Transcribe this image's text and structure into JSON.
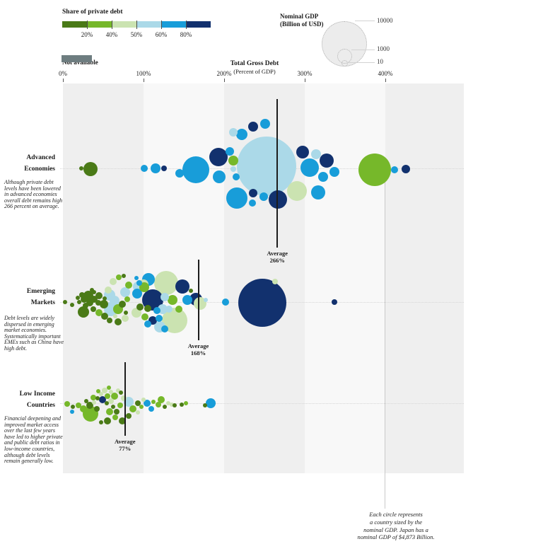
{
  "legend": {
    "title": "Share of private debt",
    "tick_labels": [
      "20%",
      "40%",
      "50%",
      "60%",
      "80%"
    ],
    "not_available_label": "Not available",
    "not_available_color": "#6e7d80"
  },
  "size_legend": {
    "title_line1": "Nominal GDP",
    "title_line2": "(Billion of USD)",
    "labels": [
      "10000",
      "1000",
      "10"
    ]
  },
  "axis": {
    "title_line1": "Total Gross Debt",
    "title_line2": "(Percent of GDP)",
    "tick_labels": [
      "0%",
      "100%",
      "200%",
      "300%",
      "400%"
    ]
  },
  "annotation": {
    "line1": "Each circle represents",
    "line2": "a country sized by the",
    "line3": "nominal GDP. Japan has a",
    "line4": "nominal GDP of $4,873 Billion."
  },
  "chart_data": {
    "type": "scatter",
    "subtype": "bubble-strip-plot",
    "encoding": {
      "x": "Total Gross Debt (Percent of GDP)",
      "size": "Nominal GDP (Billion of USD)",
      "color": "Share of private debt"
    },
    "x_ticks_pct": [
      0,
      100,
      200,
      300,
      400
    ],
    "x_max_pct": 497,
    "size_legend_values": [
      10000,
      1000,
      10
    ],
    "colors": {
      "dg": "#4a7a17",
      "g": "#76b82a",
      "pg": "#cbe3b1",
      "pb": "#abd9e8",
      "b": "#189dd9",
      "n": "#12316e",
      "na": "#6e7d80"
    },
    "color_scale_labels": [
      "20%",
      "40%",
      "50%",
      "60%",
      "80%"
    ],
    "groups": [
      {
        "id": "ae",
        "label_line1": "Advanced",
        "label_line2": "Economies",
        "caption": "Although private debt levels have been lowered in advanced economies overall debt remains high 266 percent on average.",
        "average_label": "Average",
        "average_value": "266%",
        "average_pct": 266,
        "bubbles": [
          [
            23,
            0,
            3,
            "dg"
          ],
          [
            34,
            1,
            10,
            "dg"
          ],
          [
            101,
            0,
            5,
            "b"
          ],
          [
            115,
            0,
            7,
            "b"
          ],
          [
            125,
            0,
            4,
            "n"
          ],
          [
            145,
            7,
            6,
            "b"
          ],
          [
            165,
            2,
            19,
            "b"
          ],
          [
            193,
            -16,
            13,
            "n"
          ],
          [
            194,
            12,
            9,
            "b"
          ],
          [
            207,
            -24,
            6,
            "b"
          ],
          [
            211,
            -11,
            7,
            "g"
          ],
          [
            211,
            1,
            4,
            "pb"
          ],
          [
            215,
            12,
            5,
            "b"
          ],
          [
            222,
            -48,
            8,
            "b"
          ],
          [
            211,
            -51,
            6,
            "pb"
          ],
          [
            236,
            -59,
            7,
            "n"
          ],
          [
            251,
            -63,
            7,
            "b"
          ],
          [
            253,
            -3,
            42,
            "pb"
          ],
          [
            267,
            44,
            13,
            "n"
          ],
          [
            236,
            35,
            6,
            "n"
          ],
          [
            249,
            40,
            6,
            "b"
          ],
          [
            235,
            49,
            5,
            "b"
          ],
          [
            216,
            42,
            15,
            "b"
          ],
          [
            297,
            -23,
            9,
            "n"
          ],
          [
            314,
            -20,
            7,
            "pb"
          ],
          [
            327,
            -11,
            10,
            "n"
          ],
          [
            306,
            -1,
            13,
            "b"
          ],
          [
            337,
            5,
            7,
            "b"
          ],
          [
            323,
            12,
            7,
            "b"
          ],
          [
            290,
            32,
            14,
            "pg"
          ],
          [
            317,
            34,
            10,
            "b"
          ],
          [
            387,
            2,
            23,
            "g"
          ],
          [
            411,
            2,
            5,
            "b"
          ],
          [
            425,
            1,
            6,
            "n"
          ]
        ]
      },
      {
        "id": "em",
        "label_line1": "Emerging",
        "label_line2": "Markets",
        "caption": "Debt levels are widely dispersed in emerging market economies. Systematically important EMEs such as China have high debt.",
        "average_label": "Average",
        "average_value": "168%",
        "average_pct": 168,
        "bubbles": [
          [
            3,
            0,
            3,
            "dg"
          ],
          [
            11,
            4,
            3,
            "dg"
          ],
          [
            18,
            -6,
            3,
            "dg"
          ],
          [
            20,
            0,
            3,
            "dg"
          ],
          [
            24,
            -10,
            4,
            "dg"
          ],
          [
            26,
            -4,
            5,
            "dg"
          ],
          [
            32,
            -9,
            7,
            "dg"
          ],
          [
            28,
            5,
            4,
            "dg"
          ],
          [
            33,
            1,
            5,
            "dg"
          ],
          [
            25,
            14,
            8,
            "dg"
          ],
          [
            39,
            -4,
            5,
            "dg"
          ],
          [
            39,
            -14,
            3,
            "dg"
          ],
          [
            36,
            -17,
            3,
            "dg"
          ],
          [
            45,
            -9,
            5,
            "dg"
          ],
          [
            44,
            1,
            4,
            "dg"
          ],
          [
            38,
            10,
            4,
            "dg"
          ],
          [
            45,
            15,
            5,
            "g"
          ],
          [
            51,
            3,
            6,
            "dg"
          ],
          [
            52,
            -5,
            3,
            "dg"
          ],
          [
            56,
            -17,
            5,
            "pg"
          ],
          [
            62,
            -29,
            5,
            "pg"
          ],
          [
            69,
            -35,
            4,
            "g"
          ],
          [
            75,
            -37,
            3,
            "dg"
          ],
          [
            58,
            -10,
            8,
            "pb"
          ],
          [
            64,
            -2,
            7,
            "pb"
          ],
          [
            60,
            10,
            10,
            "pb"
          ],
          [
            68,
            10,
            7,
            "g"
          ],
          [
            52,
            20,
            5,
            "dg"
          ],
          [
            58,
            26,
            4,
            "dg"
          ],
          [
            65,
            20,
            3,
            "pg"
          ],
          [
            68,
            28,
            5,
            "dg"
          ],
          [
            77,
            23,
            5,
            "pg"
          ],
          [
            78,
            15,
            3,
            "dg"
          ],
          [
            74,
            3,
            5,
            "dg"
          ],
          [
            80,
            -4,
            4,
            "g"
          ],
          [
            77,
            -14,
            7,
            "pb"
          ],
          [
            82,
            -24,
            5,
            "g"
          ],
          [
            93,
            -22,
            7,
            "pb"
          ],
          [
            100,
            -25,
            7,
            "pg"
          ],
          [
            106,
            -32,
            9,
            "b"
          ],
          [
            92,
            -12,
            7,
            "b"
          ],
          [
            95,
            -27,
            4,
            "b"
          ],
          [
            91,
            -34,
            3,
            "b"
          ],
          [
            101,
            -21,
            7,
            "g"
          ],
          [
            128,
            -27,
            17,
            "pg"
          ],
          [
            111,
            -3,
            15,
            "n"
          ],
          [
            126,
            -7,
            6,
            "pb"
          ],
          [
            136,
            -3,
            7,
            "g"
          ],
          [
            148,
            -22,
            10,
            "n"
          ],
          [
            159,
            -16,
            3,
            "dg"
          ],
          [
            154,
            -3,
            7,
            "b"
          ],
          [
            165,
            -4,
            9,
            "n"
          ],
          [
            132,
            10,
            5,
            "pb"
          ],
          [
            144,
            10,
            5,
            "g"
          ],
          [
            124,
            10,
            7,
            "pb"
          ],
          [
            117,
            12,
            5,
            "b"
          ],
          [
            105,
            9,
            5,
            "dg"
          ],
          [
            96,
            7,
            5,
            "dg"
          ],
          [
            91,
            15,
            7,
            "pg"
          ],
          [
            102,
            21,
            5,
            "g"
          ],
          [
            111,
            26,
            6,
            "n"
          ],
          [
            119,
            23,
            5,
            "b"
          ],
          [
            139,
            26,
            18,
            "pg"
          ],
          [
            120,
            35,
            8,
            "pb"
          ],
          [
            105,
            31,
            5,
            "b"
          ],
          [
            126,
            38,
            5,
            "b"
          ],
          [
            170,
            2,
            9,
            "pg"
          ],
          [
            177,
            -3,
            3,
            "pb"
          ],
          [
            202,
            0,
            5,
            "b"
          ],
          [
            247,
            1,
            34,
            "n"
          ],
          [
            263,
            -29,
            4,
            "pg"
          ],
          [
            337,
            0,
            4,
            "n"
          ]
        ]
      },
      {
        "id": "lic",
        "label_line1": "Low Income",
        "label_line2": "Countries",
        "caption": "Financial deepening and improved market access over the last few years have led to higher private and public debt ratios in low-income countries, although debt levels remain generally low.",
        "average_label": "Average",
        "average_value": "77%",
        "average_pct": 77,
        "bubbles": [
          [
            5,
            1,
            4,
            "g"
          ],
          [
            12,
            5,
            3,
            "dg"
          ],
          [
            19,
            3,
            4,
            "g"
          ],
          [
            11,
            12,
            3,
            "b"
          ],
          [
            25,
            8,
            5,
            "g"
          ],
          [
            29,
            -3,
            3,
            "dg"
          ],
          [
            33,
            3,
            5,
            "dg"
          ],
          [
            32,
            12,
            4,
            "g"
          ],
          [
            38,
            -8,
            4,
            "g"
          ],
          [
            39,
            -1,
            3,
            "pg"
          ],
          [
            42,
            8,
            4,
            "dg"
          ],
          [
            34,
            15,
            11,
            "g"
          ],
          [
            43,
            -7,
            3,
            "dg"
          ],
          [
            47,
            -13,
            3,
            "pg"
          ],
          [
            49,
            -5,
            5,
            "n"
          ],
          [
            55,
            -10,
            4,
            "g"
          ],
          [
            54,
            0,
            3,
            "dg"
          ],
          [
            60,
            -3,
            4,
            "pg"
          ],
          [
            64,
            -10,
            5,
            "g"
          ],
          [
            62,
            5,
            3,
            "dg"
          ],
          [
            58,
            12,
            5,
            "g"
          ],
          [
            67,
            12,
            4,
            "dg"
          ],
          [
            65,
            20,
            4,
            "g"
          ],
          [
            71,
            3,
            4,
            "g"
          ],
          [
            75,
            -7,
            4,
            "pg"
          ],
          [
            47,
            27,
            3,
            "dg"
          ],
          [
            55,
            25,
            5,
            "dg"
          ],
          [
            74,
            25,
            5,
            "dg"
          ],
          [
            82,
            18,
            4,
            "dg"
          ],
          [
            82,
            -2,
            7,
            "pb"
          ],
          [
            87,
            8,
            5,
            "g"
          ],
          [
            93,
            0,
            4,
            "dg"
          ],
          [
            97,
            5,
            3,
            "g"
          ],
          [
            93,
            13,
            3,
            "pg"
          ],
          [
            100,
            -5,
            3,
            "pg"
          ],
          [
            104,
            0,
            5,
            "b"
          ],
          [
            110,
            8,
            4,
            "b"
          ],
          [
            112,
            -2,
            3,
            "g"
          ],
          [
            118,
            2,
            4,
            "g"
          ],
          [
            122,
            -5,
            5,
            "g"
          ],
          [
            126,
            5,
            3,
            "dg"
          ],
          [
            131,
            0,
            3,
            "pg"
          ],
          [
            135,
            2,
            3,
            "pg"
          ],
          [
            139,
            3,
            3,
            "dg"
          ],
          [
            147,
            2,
            3,
            "dg"
          ],
          [
            153,
            0,
            3,
            "g"
          ],
          [
            176,
            3,
            3,
            "dg"
          ],
          [
            183,
            0,
            7,
            "b"
          ],
          [
            52,
            -18,
            4,
            "pg"
          ],
          [
            60,
            -16,
            3,
            "pg"
          ],
          [
            57,
            -22,
            3,
            "g"
          ],
          [
            44,
            -17,
            3,
            "g"
          ],
          [
            68,
            -18,
            3,
            "pg"
          ],
          [
            72,
            -15,
            3,
            "dg"
          ]
        ]
      }
    ]
  }
}
